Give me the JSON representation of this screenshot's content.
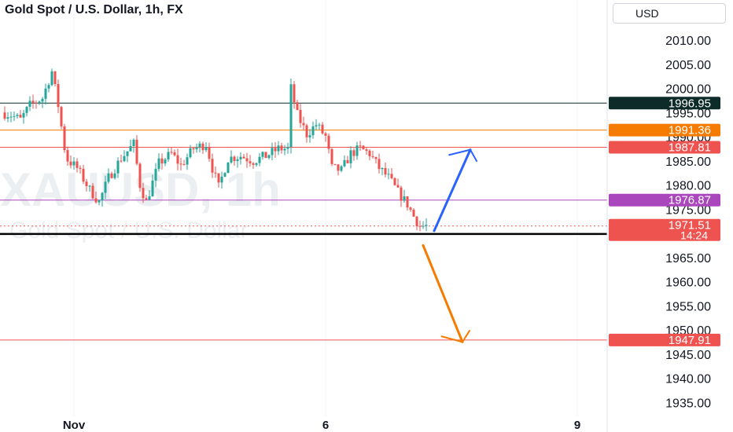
{
  "header": {
    "title": "Gold Spot / U.S. Dollar, 1h, FX",
    "currency": "USD"
  },
  "watermark": {
    "symbol": "XAUUSD, 1h",
    "description": "Gold Spot / U.S. Dollar"
  },
  "colors": {
    "up": "#26a69a",
    "down": "#ef5350",
    "hline_dark": "#0d2b28",
    "hline_orange": "#f57c00",
    "hline_red": "#ef5350",
    "hline_purple": "#ab47bc",
    "arrow_blue": "#2962ff",
    "arrow_orange": "#f57c00"
  },
  "chart_data": {
    "type": "candlestick",
    "symbol": "XAUUSD",
    "timeframe": "1h",
    "ylim": [
      1932,
      2016
    ],
    "y_ticks": [
      2010.0,
      2005.0,
      2000.0,
      1995.0,
      1990.0,
      1985.0,
      1980.0,
      1975.0,
      1965.0,
      1960.0,
      1955.0,
      1950.0,
      1945.0,
      1940.0,
      1935.0
    ],
    "x_ticks": [
      {
        "label": "Nov",
        "bar": 46
      },
      {
        "label": "6",
        "bar": 206
      },
      {
        "label": "9",
        "bar": 366
      }
    ],
    "horizontal_levels": [
      {
        "value": 1996.95,
        "label": "1996.95",
        "color": "#0d2b28"
      },
      {
        "value": 1991.36,
        "label": "1991.36",
        "color": "#f57c00"
      },
      {
        "value": 1987.81,
        "label": "1987.81",
        "color": "#ef5350"
      },
      {
        "value": 1976.87,
        "label": "1976.87",
        "color": "#ab47bc"
      },
      {
        "value": 1969.86,
        "label": "1969.86",
        "color": "#000000"
      },
      {
        "value": 1947.91,
        "label": "1947.91",
        "color": "#ef5350"
      }
    ],
    "last_price": {
      "value": 1971.51,
      "label": "1971.51",
      "countdown": "14:24"
    },
    "projections": [
      {
        "color": "#2962ff",
        "from": {
          "bar": 275,
          "value": 1970.5
        },
        "to": {
          "bar": 298,
          "value": 1987.3
        }
      },
      {
        "color": "#f57c00",
        "from": {
          "bar": 268,
          "value": 1967.5
        },
        "to": {
          "bar": 293,
          "value": 1947.5
        }
      }
    ],
    "ohlc_anchors": [
      [
        0,
        1995.0
      ],
      [
        6,
        1994.5
      ],
      [
        12,
        1993.5
      ],
      [
        18,
        1996.5
      ],
      [
        26,
        1998.0
      ],
      [
        32,
        2003.5
      ],
      [
        36,
        1996.5
      ],
      [
        41,
        1985.5
      ],
      [
        48,
        1983.5
      ],
      [
        56,
        1979.0
      ],
      [
        62,
        1976.5
      ],
      [
        68,
        1981.5
      ],
      [
        76,
        1985.5
      ],
      [
        84,
        1988.5
      ],
      [
        88,
        1980.0
      ],
      [
        92,
        1976.5
      ],
      [
        100,
        1984.5
      ],
      [
        108,
        1986.5
      ],
      [
        114,
        1984.0
      ],
      [
        122,
        1987.5
      ],
      [
        130,
        1988.5
      ],
      [
        134,
        1983.5
      ],
      [
        138,
        1979.5
      ],
      [
        144,
        1985.5
      ],
      [
        152,
        1986.0
      ],
      [
        160,
        1985.0
      ],
      [
        168,
        1986.0
      ],
      [
        176,
        1987.5
      ],
      [
        182,
        1987.5
      ],
      [
        184,
        2000.0
      ],
      [
        188,
        1994.5
      ],
      [
        194,
        1990.5
      ],
      [
        200,
        1992.5
      ],
      [
        206,
        1990.0
      ],
      [
        210,
        1983.5
      ],
      [
        216,
        1983.0
      ],
      [
        222,
        1986.5
      ],
      [
        228,
        1987.5
      ],
      [
        234,
        1986.5
      ],
      [
        240,
        1983.5
      ],
      [
        246,
        1981.5
      ],
      [
        252,
        1978.5
      ],
      [
        258,
        1976.0
      ],
      [
        262,
        1973.5
      ],
      [
        266,
        1971.5
      ],
      [
        270,
        1971.5
      ]
    ],
    "candle_ranges": {
      "first_bar": 0,
      "last_bar": 270
    }
  }
}
